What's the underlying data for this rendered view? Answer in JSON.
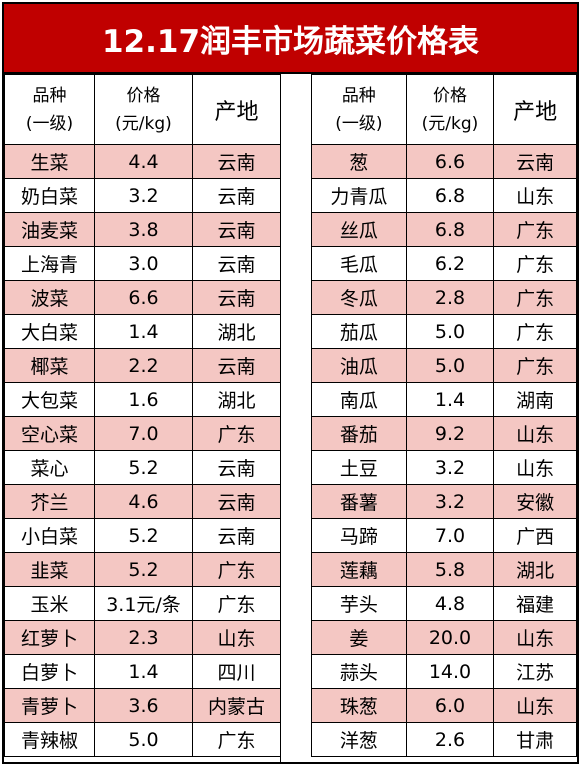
{
  "title": "12.17润丰市场蔬菜价格表",
  "colors": {
    "title_bg": "#c00000",
    "shade": "#f4c7c3"
  },
  "headers": {
    "name_line1": "品种",
    "name_line2": "(一级)",
    "price_line1": "价格",
    "price_line2": "(元/kg)",
    "origin": "产地"
  },
  "left_rows": [
    {
      "name": "生菜",
      "price": "4.4",
      "origin": "云南"
    },
    {
      "name": "奶白菜",
      "price": "3.2",
      "origin": "云南"
    },
    {
      "name": "油麦菜",
      "price": "3.8",
      "origin": "云南"
    },
    {
      "name": "上海青",
      "price": "3.0",
      "origin": "云南"
    },
    {
      "name": "波菜",
      "price": "6.6",
      "origin": "云南"
    },
    {
      "name": "大白菜",
      "price": "1.4",
      "origin": "湖北"
    },
    {
      "name": "椰菜",
      "price": "2.2",
      "origin": "云南"
    },
    {
      "name": "大包菜",
      "price": "1.6",
      "origin": "湖北"
    },
    {
      "name": "空心菜",
      "price": "7.0",
      "origin": "广东"
    },
    {
      "name": "菜心",
      "price": "5.2",
      "origin": "云南"
    },
    {
      "name": "芥兰",
      "price": "4.6",
      "origin": "云南"
    },
    {
      "name": "小白菜",
      "price": "5.2",
      "origin": "云南"
    },
    {
      "name": "韭菜",
      "price": "5.2",
      "origin": "广东"
    },
    {
      "name": "玉米",
      "price": "3.1元/条",
      "origin": "广东"
    },
    {
      "name": "红萝卜",
      "price": "2.3",
      "origin": "山东"
    },
    {
      "name": "白萝卜",
      "price": "1.4",
      "origin": "四川"
    },
    {
      "name": "青萝卜",
      "price": "3.6",
      "origin": "内蒙古"
    },
    {
      "name": "青辣椒",
      "price": "5.0",
      "origin": "广东"
    }
  ],
  "right_rows": [
    {
      "name": "葱",
      "price": "6.6",
      "origin": "云南"
    },
    {
      "name": "力青瓜",
      "price": "6.8",
      "origin": "山东"
    },
    {
      "name": "丝瓜",
      "price": "6.8",
      "origin": "广东"
    },
    {
      "name": "毛瓜",
      "price": "6.2",
      "origin": "广东"
    },
    {
      "name": "冬瓜",
      "price": "2.8",
      "origin": "广东"
    },
    {
      "name": "茄瓜",
      "price": "5.0",
      "origin": "广东"
    },
    {
      "name": "油瓜",
      "price": "5.0",
      "origin": "广东"
    },
    {
      "name": "南瓜",
      "price": "1.4",
      "origin": "湖南"
    },
    {
      "name": "番茄",
      "price": "9.2",
      "origin": "山东"
    },
    {
      "name": "土豆",
      "price": "3.2",
      "origin": "山东"
    },
    {
      "name": "番薯",
      "price": "3.2",
      "origin": "安徽"
    },
    {
      "name": "马蹄",
      "price": "7.0",
      "origin": "广西"
    },
    {
      "name": "莲藕",
      "price": "5.8",
      "origin": "湖北"
    },
    {
      "name": "芋头",
      "price": "4.8",
      "origin": "福建"
    },
    {
      "name": "姜",
      "price": "20.0",
      "origin": "山东"
    },
    {
      "name": "蒜头",
      "price": "14.0",
      "origin": "江苏"
    },
    {
      "name": "珠葱",
      "price": "6.0",
      "origin": "山东"
    },
    {
      "name": "洋葱",
      "price": "2.6",
      "origin": "甘肃"
    }
  ]
}
